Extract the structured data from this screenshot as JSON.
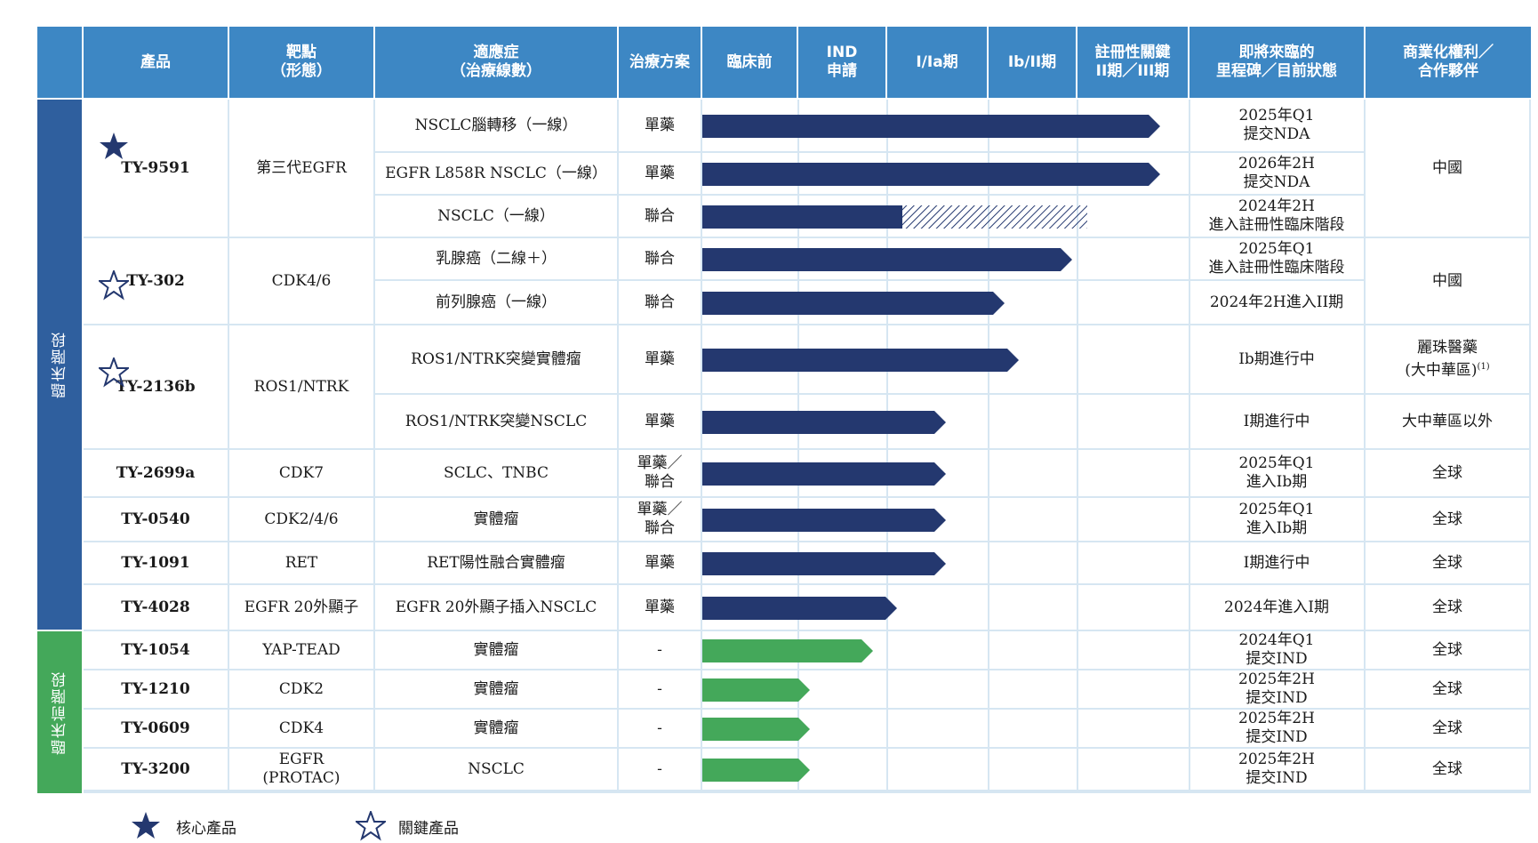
{
  "headers": {
    "product": "產品",
    "target": "靶點\n（形態）",
    "indication": "適應症\n（治療線數）",
    "regimen": "治療方案",
    "preclinical": "臨床前",
    "ind": "IND\n申請",
    "phase_1_1a": "I/Ia期",
    "phase_1b_2": "Ib/II期",
    "pivotal": "註冊性關鍵\nII期／III期",
    "milestone": "即將來臨的\n里程碑／目前狀態",
    "rights": "商業化權利／\n合作夥伴"
  },
  "stages": {
    "clinical": "臨床階段",
    "preclinical": "臨床前階段"
  },
  "colors": {
    "header": "#3d87c4",
    "clinical_stage": "#2f5f9e",
    "preclinical_stage": "#44a85a",
    "clinical_bar": "#24386f",
    "preclinical_bar": "#44a85a",
    "grid": "#d6e6f2"
  },
  "products": [
    {
      "name": "TY-9591",
      "star": "filled",
      "target": "第三代EGFR",
      "rights": "中國"
    },
    {
      "name": "TY-302",
      "star": "outline",
      "target": "CDK4/6",
      "rights": "中國"
    },
    {
      "name": "TY-2136b",
      "star": "outline",
      "target": "ROS1/NTRK"
    },
    {
      "name": "TY-2699a",
      "star": "",
      "target": "CDK7",
      "rights": "全球"
    },
    {
      "name": "TY-0540",
      "star": "",
      "target": "CDK2/4/6",
      "rights": "全球"
    },
    {
      "name": "TY-1091",
      "star": "",
      "target": "RET",
      "rights": "全球"
    },
    {
      "name": "TY-4028",
      "star": "",
      "target": "EGFR 20外顯子",
      "rights": "全球"
    },
    {
      "name": "TY-1054",
      "star": "",
      "target": "YAP-TEAD",
      "rights": "全球"
    },
    {
      "name": "TY-1210",
      "star": "",
      "target": "CDK2",
      "rights": "全球"
    },
    {
      "name": "TY-0609",
      "star": "",
      "target": "CDK4",
      "rights": "全球"
    },
    {
      "name": "TY-3200",
      "star": "",
      "target": "EGFR\n(PROTAC)",
      "rights": "全球"
    }
  ],
  "rights_tys2136b": {
    "row1_main": "麗珠醫藥",
    "row1_sub": "(大中華區)",
    "row1_note": "(1)",
    "row2": "大中華區以外"
  },
  "programs": [
    {
      "indication": "NSCLC腦轉移（一線）",
      "regimen": "單藥",
      "milestone": "2025年Q1\n提交NDA",
      "progress": 0.94,
      "stage": "clinical"
    },
    {
      "indication": "EGFR L858R NSCLC（一線）",
      "regimen": "單藥",
      "milestone": "2026年2H\n提交NDA",
      "progress": 0.94,
      "stage": "clinical"
    },
    {
      "indication": "NSCLC（一線）",
      "regimen": "聯合",
      "milestone": "2024年2H\n進入註冊性臨床階段",
      "progress": 0.41,
      "planned": 0.79,
      "stage": "clinical"
    },
    {
      "indication": "乳腺癌（二線＋）",
      "regimen": "聯合",
      "milestone": "2025年Q1\n進入註冊性臨床階段",
      "progress": 0.76,
      "stage": "clinical"
    },
    {
      "indication": "前列腺癌（一線）",
      "regimen": "聯合",
      "milestone": "2024年2H進入II期",
      "progress": 0.62,
      "stage": "clinical"
    },
    {
      "indication": "ROS1/NTRK突變實體瘤",
      "regimen": "單藥",
      "milestone": "Ib期進行中",
      "progress": 0.65,
      "stage": "clinical"
    },
    {
      "indication": "ROS1/NTRK突變NSCLC",
      "regimen": "單藥",
      "milestone": "I期進行中",
      "progress": 0.5,
      "stage": "clinical"
    },
    {
      "indication": "SCLC、TNBC",
      "regimen": "單藥／\n聯合",
      "milestone": "2025年Q1\n進入Ib期",
      "progress": 0.5,
      "stage": "clinical"
    },
    {
      "indication": "實體瘤",
      "regimen": "單藥／\n聯合",
      "milestone": "2025年Q1\n進入Ib期",
      "progress": 0.5,
      "stage": "clinical"
    },
    {
      "indication": "RET陽性融合實體瘤",
      "regimen": "單藥",
      "milestone": "I期進行中",
      "progress": 0.5,
      "stage": "clinical"
    },
    {
      "indication": "EGFR 20外顯子插入NSCLC",
      "regimen": "單藥",
      "milestone": "2024年進入I期",
      "progress": 0.4,
      "stage": "clinical"
    },
    {
      "indication": "實體瘤",
      "regimen": "-",
      "milestone": "2024年Q1\n提交IND",
      "progress": 0.35,
      "stage": "preclinical"
    },
    {
      "indication": "實體瘤",
      "regimen": "-",
      "milestone": "2025年2H\n提交IND",
      "progress": 0.22,
      "stage": "preclinical"
    },
    {
      "indication": "實體瘤",
      "regimen": "-",
      "milestone": "2025年2H\n提交IND",
      "progress": 0.22,
      "stage": "preclinical"
    },
    {
      "indication": "NSCLC",
      "regimen": "-",
      "milestone": "2025年2H\n提交IND",
      "progress": 0.22,
      "stage": "preclinical"
    }
  ],
  "legend": {
    "core": "核心產品",
    "key": "關鍵產品"
  }
}
